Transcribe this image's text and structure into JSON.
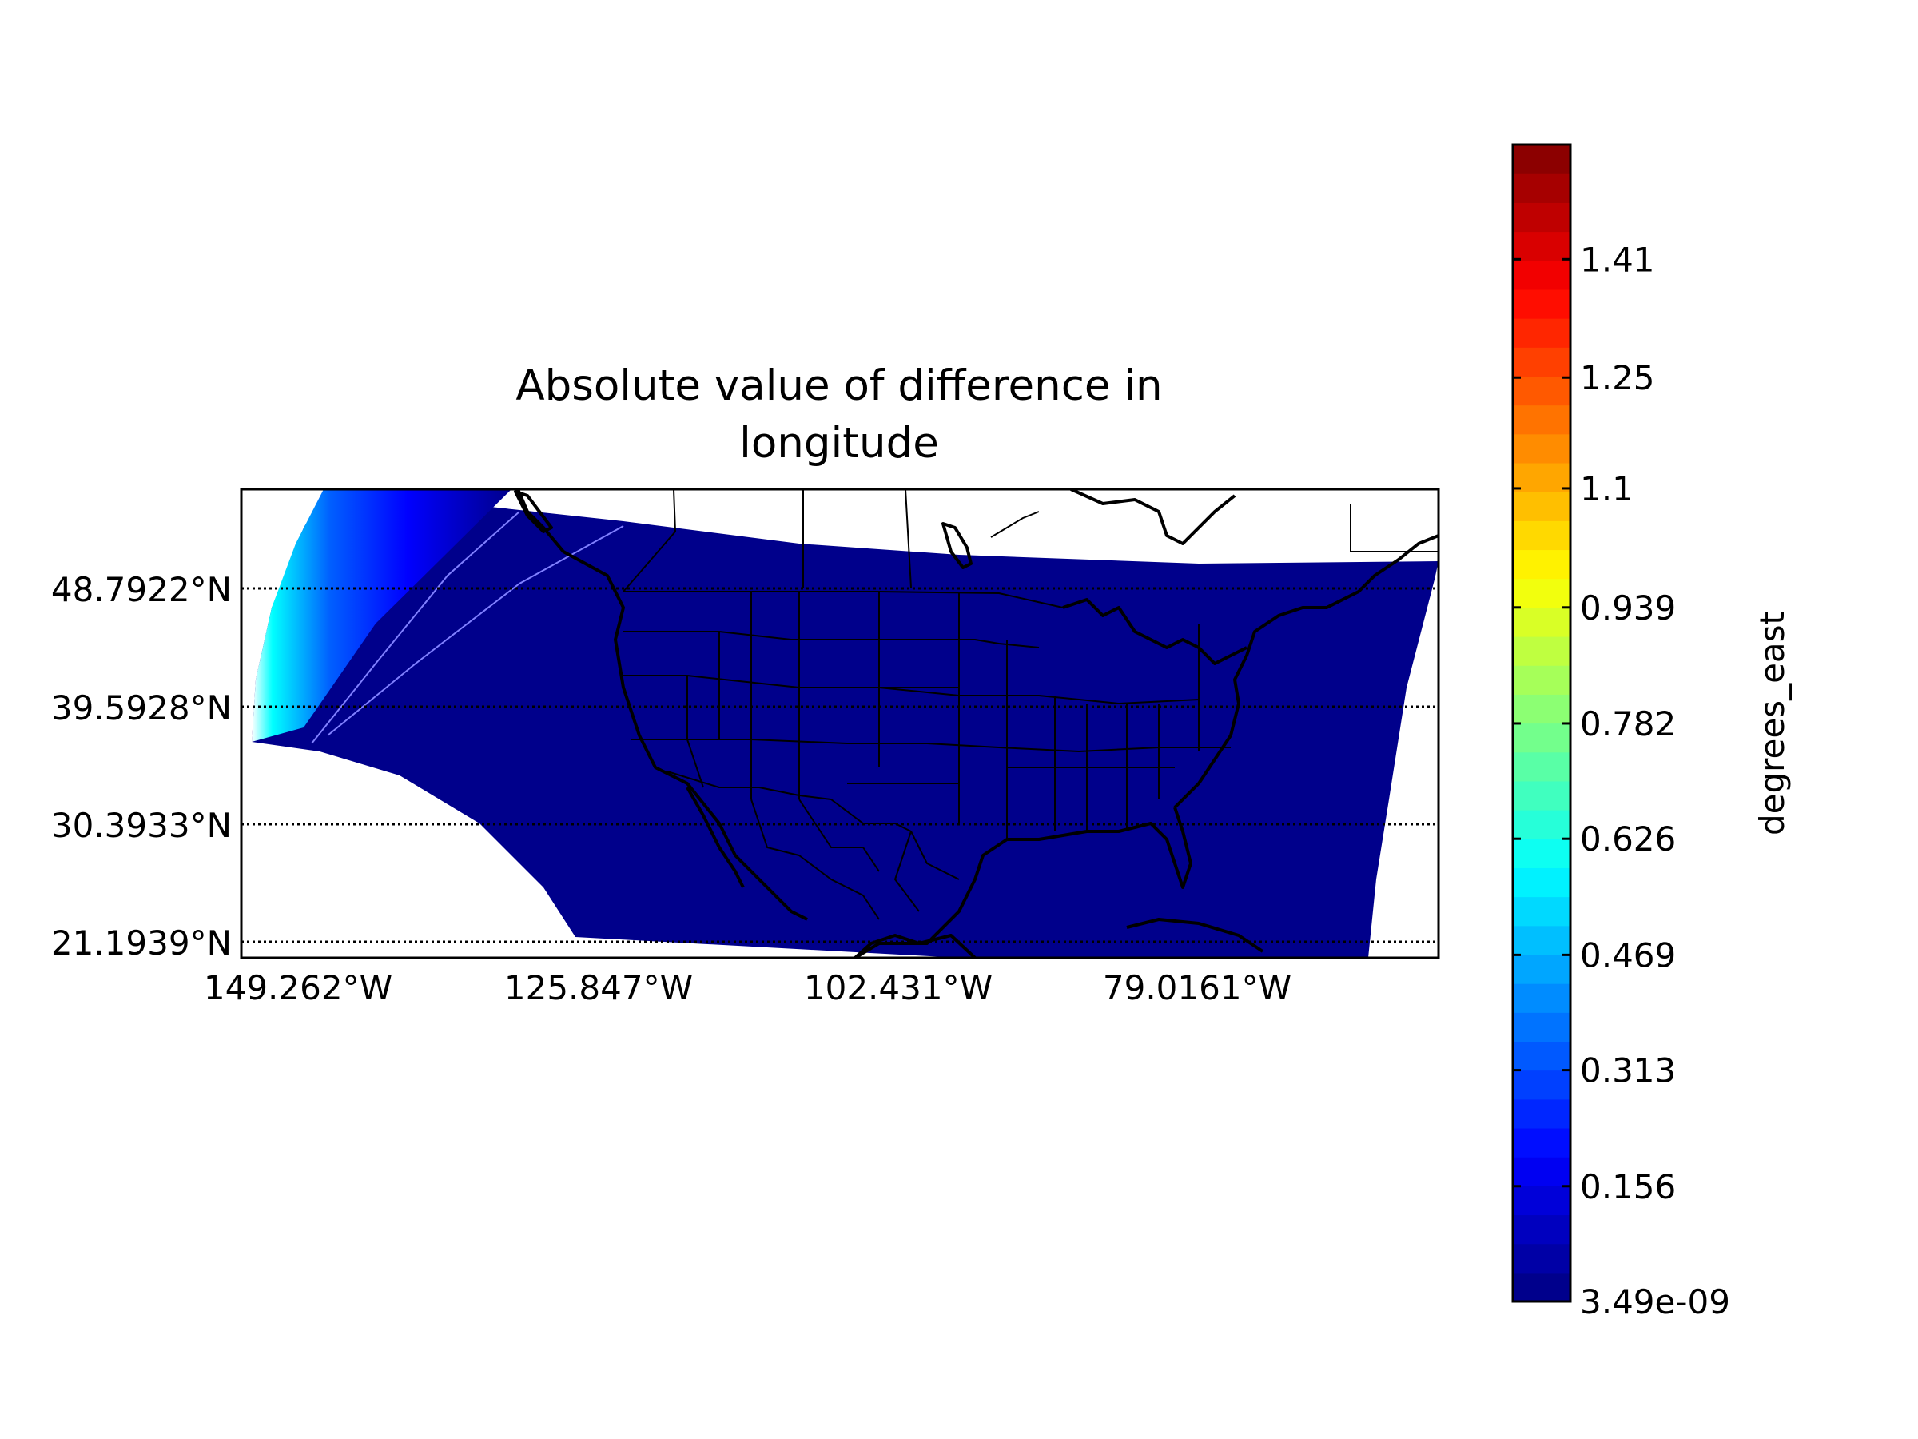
{
  "title_lines": [
    "Absolute value of difference in",
    "longitude"
  ],
  "map": {
    "lat_labels": [
      "48.7922°N",
      "39.5928°N",
      "30.3933°N",
      "21.1939°N"
    ],
    "lon_labels": [
      "149.262°W",
      "125.847°W",
      "102.431°W",
      "79.0161°W"
    ],
    "data_fill_color": "#00008b",
    "edge_fade_colors": [
      "#ffffff",
      "#00ffff",
      "#0060ff",
      "#0000ff",
      "#0000b5"
    ]
  },
  "colorbar": {
    "label": "degrees_east",
    "colormap": "jet",
    "ticks": [
      "1.41",
      "1.25",
      "1.1",
      "0.939",
      "0.782",
      "0.626",
      "0.469",
      "0.313",
      "0.156",
      "3.49e-09"
    ],
    "tick_values": [
      1.41,
      1.25,
      1.1,
      0.939,
      0.782,
      0.626,
      0.469,
      0.313,
      0.156,
      3.49e-09
    ],
    "vmin": 3.49e-09,
    "vmax": 1.565,
    "levels": 40
  }
}
